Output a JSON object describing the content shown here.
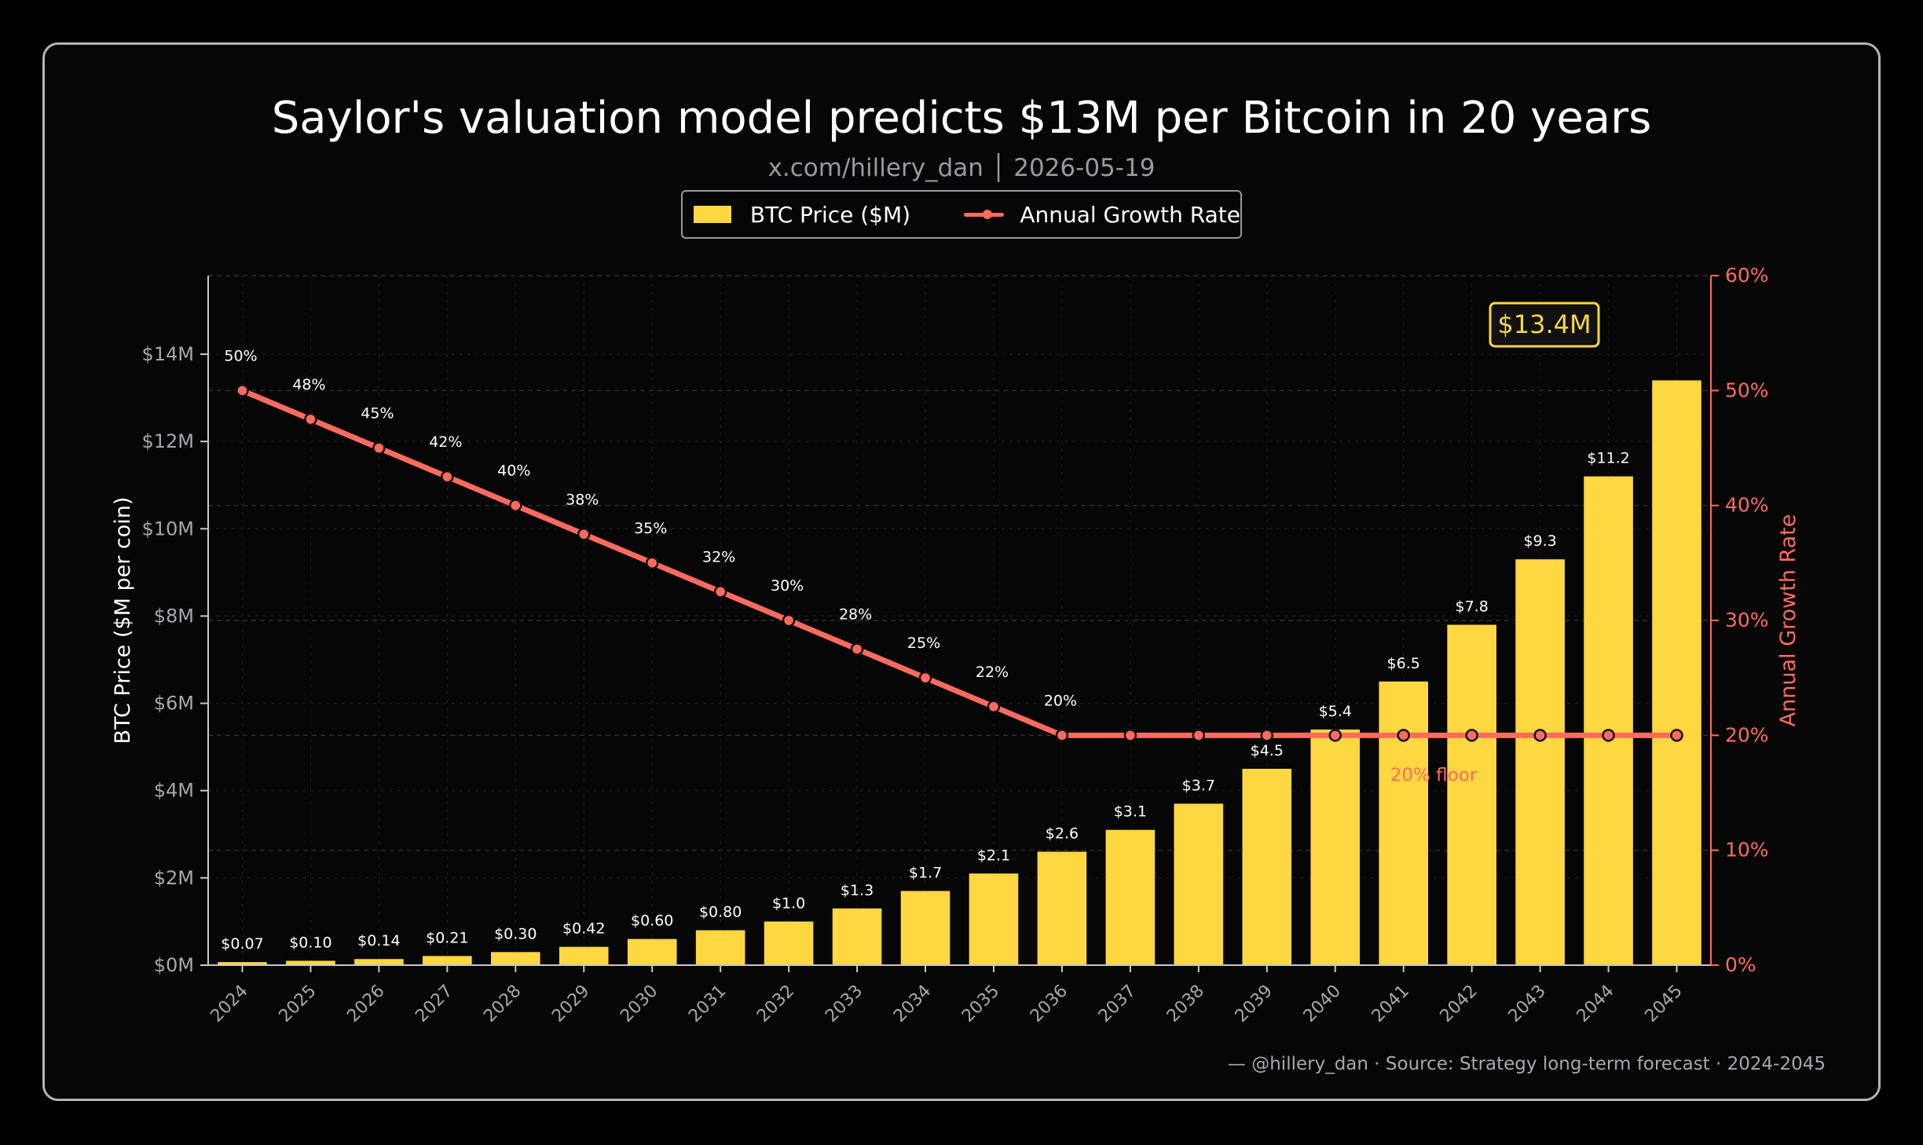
{
  "chart_data": {
    "type": "bar",
    "title": "Saylor's valuation model predicts $13M per Bitcoin in 20 years",
    "subtitle": "x.com/hillery_dan  │  2026-05-19",
    "ylabel": "BTC Price ($M per coin)",
    "ylabel_right": "Annual Growth Rate",
    "ylim": [
      0,
      15.8
    ],
    "ylim_right": [
      0,
      60
    ],
    "yticks": [
      0,
      2,
      4,
      6,
      8,
      10,
      12,
      14
    ],
    "yticklabels": [
      "$0M",
      "$2M",
      "$4M",
      "$6M",
      "$8M",
      "$10M",
      "$12M",
      "$14M"
    ],
    "yticks_right": [
      0,
      10,
      20,
      30,
      40,
      50,
      60
    ],
    "yticklabels_right": [
      "0%",
      "10%",
      "20%",
      "30%",
      "40%",
      "50%",
      "60%"
    ],
    "categories": [
      "2024",
      "2025",
      "2026",
      "2027",
      "2028",
      "2029",
      "2030",
      "2031",
      "2032",
      "2033",
      "2034",
      "2035",
      "2036",
      "2037",
      "2038",
      "2039",
      "2040",
      "2041",
      "2042",
      "2043",
      "2044",
      "2045"
    ],
    "series": [
      {
        "name": "BTC Price ($M)",
        "type": "bar",
        "axis": "left",
        "color": "#ffd740",
        "values": [
          0.07,
          0.1,
          0.14,
          0.21,
          0.3,
          0.42,
          0.6,
          0.8,
          1.0,
          1.3,
          1.7,
          2.1,
          2.6,
          3.1,
          3.7,
          4.5,
          5.4,
          6.5,
          7.8,
          9.3,
          11.2,
          13.4
        ],
        "labels": [
          "$0.07",
          "$0.10",
          "$0.14",
          "$0.21",
          "$0.30",
          "$0.42",
          "$0.60",
          "$0.80",
          "$1.0",
          "$1.3",
          "$1.7",
          "$2.1",
          "$2.6",
          "$3.1",
          "$3.7",
          "$4.5",
          "$5.4",
          "$6.5",
          "$7.8",
          "$9.3",
          "$11.2",
          ""
        ]
      },
      {
        "name": "Annual Growth Rate",
        "type": "line",
        "axis": "right",
        "color": "#ff6b5e",
        "values": [
          50,
          47.5,
          45,
          42.5,
          40,
          37.5,
          35,
          32.5,
          30,
          27.5,
          25,
          22.5,
          20,
          20,
          20,
          20,
          20,
          20,
          20,
          20,
          20,
          20
        ],
        "labels": [
          "50%",
          "48%",
          "45%",
          "42%",
          "40%",
          "38%",
          "35%",
          "32%",
          "30%",
          "28%",
          "25%",
          "22%",
          "20%",
          "",
          "",
          "",
          "",
          "",
          "",
          "",
          "",
          ""
        ]
      }
    ],
    "annotations": {
      "peak_callout": "$13.4M",
      "floor_label": "20% floor"
    },
    "grid": true,
    "legend_position": "top-center"
  },
  "footer": "— @hillery_dan  ·  Source: Strategy long-term forecast  ·  2024-2045",
  "colors": {
    "background": "#060606",
    "bar": "#ffd740",
    "line": "#ff6b5e",
    "text": "#ffffff",
    "muted": "#9a9a9e"
  }
}
